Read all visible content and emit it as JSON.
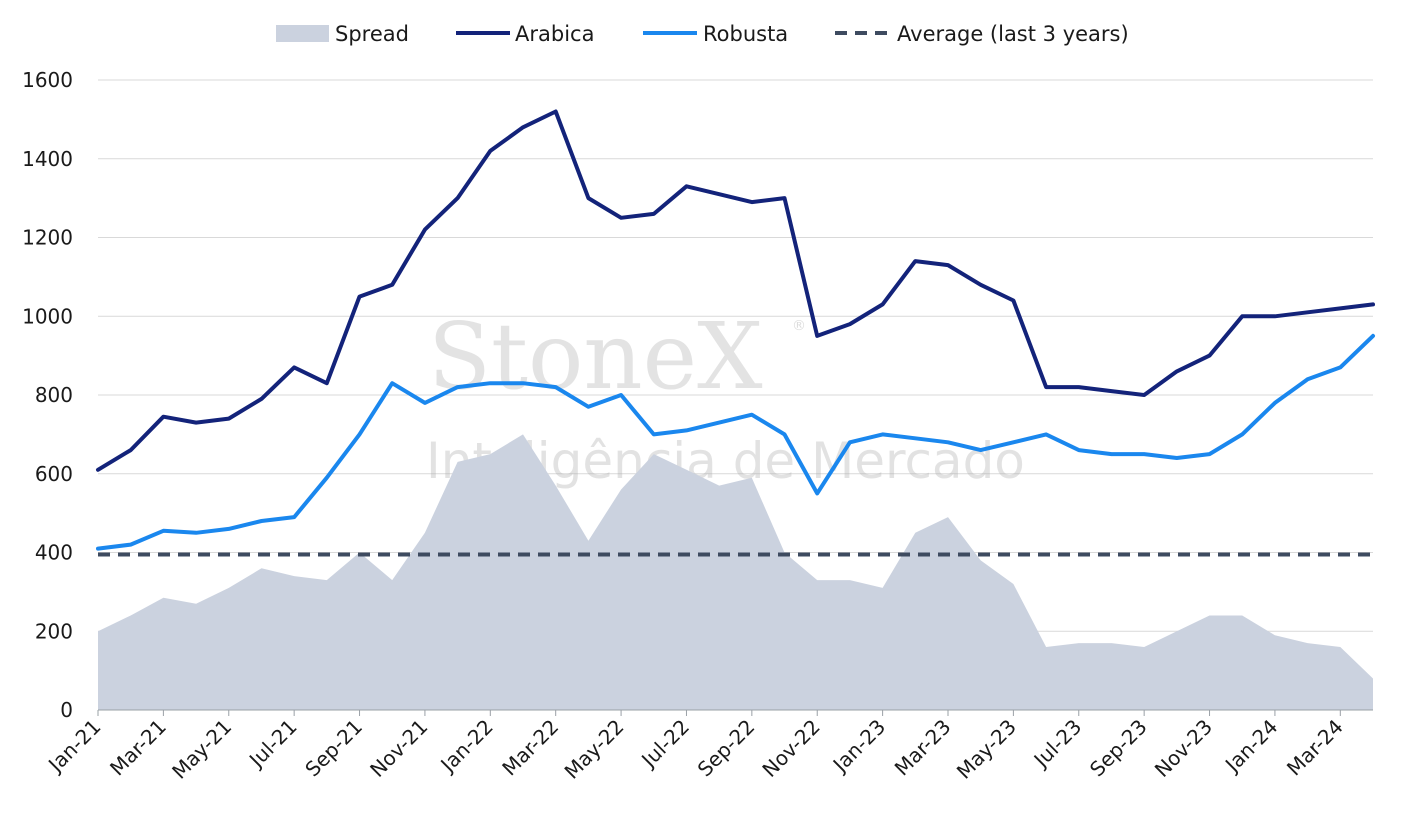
{
  "chart_data": {
    "type": "line",
    "x": [
      "Jan-21",
      "Feb-21",
      "Mar-21",
      "Apr-21",
      "May-21",
      "Jun-21",
      "Jul-21",
      "Aug-21",
      "Sep-21",
      "Oct-21",
      "Nov-21",
      "Dec-21",
      "Jan-22",
      "Feb-22",
      "Mar-22",
      "Apr-22",
      "May-22",
      "Jun-22",
      "Jul-22",
      "Aug-22",
      "Sep-22",
      "Oct-22",
      "Nov-22",
      "Dec-22",
      "Jan-23",
      "Feb-23",
      "Mar-23",
      "Apr-23",
      "May-23",
      "Jun-23",
      "Jul-23",
      "Aug-23",
      "Sep-23",
      "Oct-23",
      "Nov-23",
      "Dec-23",
      "Jan-24",
      "Feb-24",
      "Mar-24",
      "Apr-24"
    ],
    "x_tick_labels": [
      "Jan-21",
      "Mar-21",
      "May-21",
      "Jul-21",
      "Sep-21",
      "Nov-21",
      "Jan-22",
      "Mar-22",
      "May-22",
      "Jul-22",
      "Sep-22",
      "Nov-22",
      "Jan-23",
      "Mar-23",
      "May-23",
      "Jul-23",
      "Sep-23",
      "Nov-23",
      "Jan-24",
      "Mar-24"
    ],
    "y_ticks": [
      "0",
      "200",
      "400",
      "600",
      "800",
      "1000",
      "1200",
      "1400",
      "1600"
    ],
    "ylim": [
      0,
      1600
    ],
    "grid": true,
    "legend_position": "top",
    "series": [
      {
        "name": "Spread",
        "kind": "area",
        "color": "#cbd2df",
        "values": [
          200,
          240,
          285,
          270,
          310,
          360,
          340,
          330,
          400,
          330,
          450,
          630,
          650,
          700,
          570,
          430,
          560,
          650,
          610,
          570,
          590,
          400,
          330,
          330,
          310,
          450,
          490,
          380,
          320,
          160,
          170,
          170,
          160,
          200,
          240,
          240,
          190,
          170,
          160,
          80
        ]
      },
      {
        "name": "Arabica",
        "kind": "line",
        "color": "#13237a",
        "values": [
          610,
          660,
          745,
          730,
          740,
          790,
          870,
          830,
          1050,
          1080,
          1220,
          1300,
          1420,
          1480,
          1520,
          1300,
          1250,
          1260,
          1330,
          1310,
          1290,
          1300,
          950,
          980,
          1030,
          1140,
          1130,
          1080,
          1040,
          820,
          820,
          810,
          800,
          860,
          900,
          1000,
          1000,
          1010,
          1020,
          1030
        ]
      },
      {
        "name": "Robusta",
        "kind": "line",
        "color": "#1a87ee",
        "values": [
          410,
          420,
          455,
          450,
          460,
          480,
          490,
          590,
          700,
          830,
          780,
          820,
          830,
          830,
          820,
          770,
          800,
          700,
          710,
          730,
          750,
          700,
          550,
          680,
          700,
          690,
          680,
          660,
          680,
          700,
          660,
          650,
          650,
          640,
          650,
          700,
          780,
          840,
          870,
          950
        ]
      },
      {
        "name": "Average (last 3 years)",
        "kind": "dashed",
        "color": "#3e4b60",
        "values": [
          395,
          395,
          395,
          395,
          395,
          395,
          395,
          395,
          395,
          395,
          395,
          395,
          395,
          395,
          395,
          395,
          395,
          395,
          395,
          395,
          395,
          395,
          395,
          395,
          395,
          395,
          395,
          395,
          395,
          395,
          395,
          395,
          395,
          395,
          395,
          395,
          395,
          395,
          395,
          395
        ]
      }
    ]
  },
  "watermark": {
    "brand": "StoneX",
    "mark": "®",
    "tagline": "Inteligência de Mercado"
  }
}
